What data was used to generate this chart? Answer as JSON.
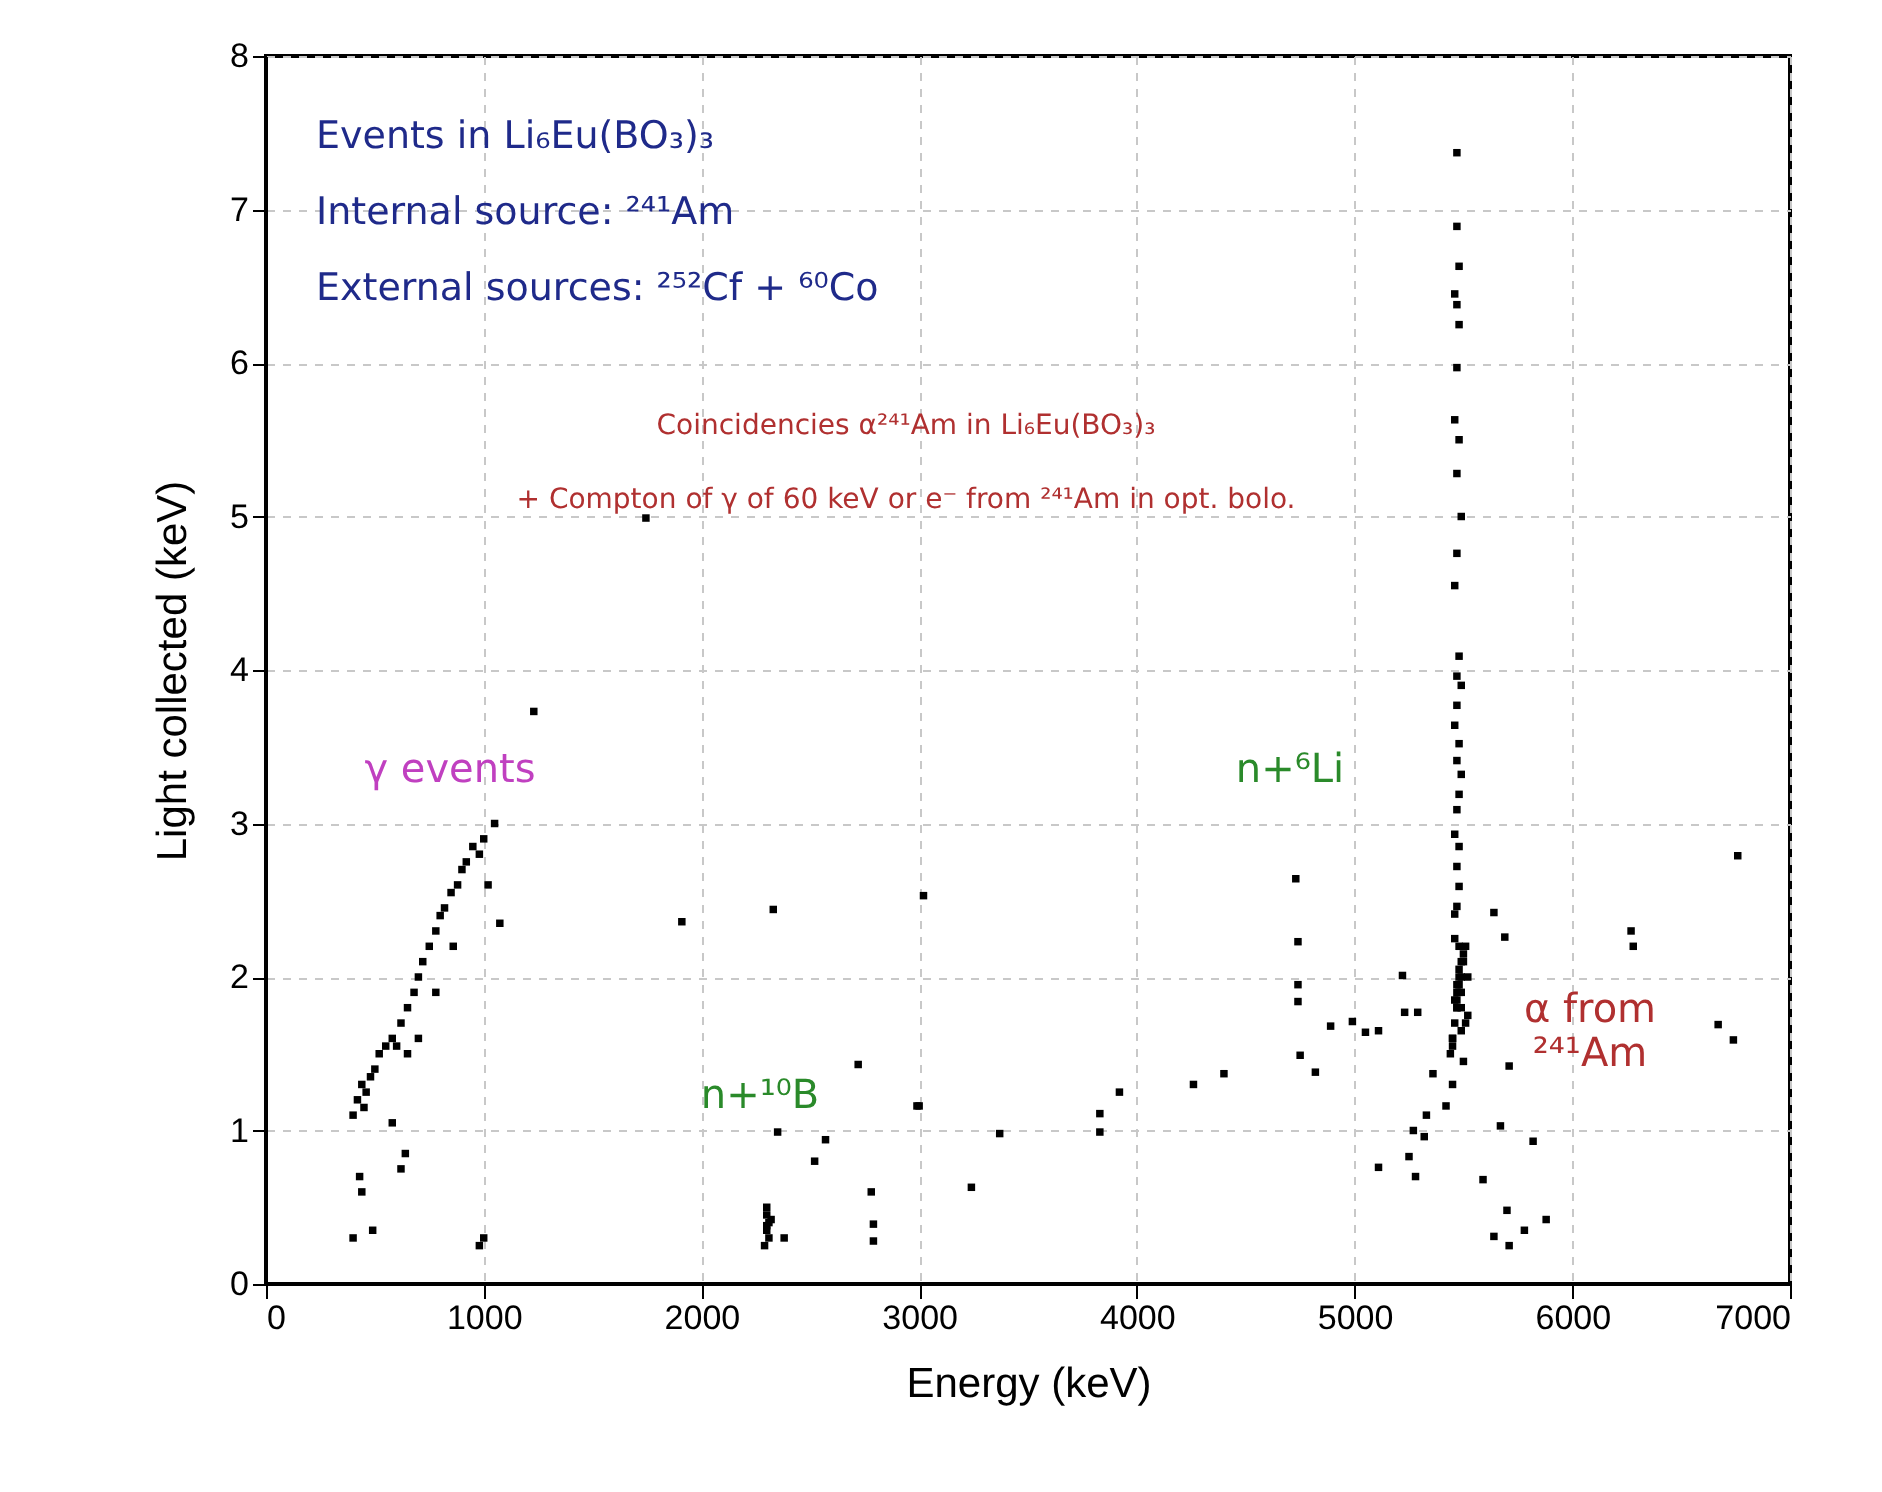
{
  "chart_data": {
    "type": "scatter",
    "xlabel": "Energy (keV)",
    "ylabel": "Light collected (keV)",
    "xlim": [
      0,
      7000
    ],
    "xticks": [
      0,
      1000,
      2000,
      3000,
      4000,
      5000,
      6000,
      7000
    ],
    "ylim": [
      0,
      8
    ],
    "yticks": [
      0,
      1,
      2,
      3,
      4,
      5,
      6,
      7,
      8
    ],
    "grid": true,
    "marker": "square",
    "series": [
      {
        "color": "#000000",
        "x": [
          400,
          420,
          440,
          450,
          460,
          480,
          500,
          520,
          550,
          580,
          600,
          620,
          650,
          680,
          700,
          720,
          750,
          780,
          800,
          820,
          850,
          880,
          900,
          920,
          950,
          980,
          1000,
          1050,
          1020,
          860,
          780,
          700,
          650,
          1074,
          1230,
          430,
          440,
          640,
          620,
          580,
          490,
          400,
          1000,
          980,
          1910,
          2330,
          1745,
          2300,
          2300,
          2310,
          2300,
          2310,
          2290,
          2320,
          2300,
          2380,
          2350,
          2720,
          2570,
          2520,
          2780,
          2790,
          2790,
          2990,
          3020,
          3000,
          3370,
          3240,
          3830,
          3830,
          3920,
          4260,
          4400,
          4730,
          4740,
          4740,
          4740,
          4750,
          4820,
          4890,
          4990,
          5050,
          5110,
          5220,
          5230,
          5290,
          5110,
          5250,
          5280,
          5270,
          5320,
          5670,
          5820,
          5590,
          5700,
          5640,
          5710,
          5780,
          5880,
          5640,
          5690,
          5710,
          6270,
          6280,
          6670,
          6760,
          6740,
          5360,
          5330,
          5420,
          5450,
          5440,
          5450,
          5460,
          5470,
          5480,
          5490,
          5500,
          5510,
          5520,
          5460,
          5470,
          5480,
          5490,
          5500,
          5450,
          5470,
          5490,
          5510,
          5480,
          5460,
          5500,
          5470,
          5490,
          5480,
          5450,
          5520,
          5470,
          5490,
          5480,
          5470,
          5470,
          5480,
          5460,
          5470,
          5480,
          5470,
          5460,
          5480,
          5470,
          5490,
          5470,
          5460,
          5480,
          5470,
          5490,
          5470,
          5460,
          5480,
          5470,
          5490,
          5480,
          5470,
          5460,
          5480,
          5470,
          5480,
          5470,
          5460
        ],
        "values": [
          1.1,
          1.2,
          1.3,
          1.15,
          1.25,
          1.35,
          1.4,
          1.5,
          1.55,
          1.6,
          1.55,
          1.7,
          1.8,
          1.9,
          2.0,
          2.1,
          2.2,
          2.3,
          2.4,
          2.45,
          2.55,
          2.6,
          2.7,
          2.75,
          2.85,
          2.8,
          2.9,
          3.0,
          2.6,
          2.2,
          1.9,
          1.6,
          1.5,
          2.35,
          3.73,
          0.7,
          0.6,
          0.85,
          0.75,
          1.05,
          0.35,
          0.3,
          0.3,
          0.25,
          2.36,
          2.44,
          4.99,
          0.5,
          0.45,
          0.4,
          0.35,
          0.3,
          0.25,
          0.42,
          0.38,
          0.3,
          0.99,
          1.43,
          0.94,
          0.8,
          0.6,
          0.39,
          0.28,
          1.16,
          2.53,
          1.16,
          0.98,
          0.63,
          1.11,
          0.99,
          1.25,
          1.3,
          1.37,
          2.64,
          2.23,
          1.95,
          1.84,
          1.49,
          1.38,
          1.68,
          1.71,
          1.64,
          1.65,
          2.01,
          1.77,
          1.77,
          0.76,
          0.83,
          0.7,
          1.0,
          0.96,
          1.03,
          0.93,
          0.68,
          0.48,
          0.31,
          0.25,
          0.35,
          0.42,
          2.42,
          2.26,
          1.42,
          2.3,
          2.2,
          1.69,
          2.79,
          1.59,
          1.37,
          1.1,
          1.16,
          1.3,
          1.5,
          1.6,
          1.7,
          1.8,
          1.9,
          2.0,
          2.1,
          2.2,
          1.75,
          1.85,
          1.95,
          2.05,
          1.65,
          2.15,
          1.55,
          1.9,
          1.8,
          1.7,
          2.0,
          2.25,
          1.45,
          1.85,
          2.1,
          1.95,
          1.6,
          2.0,
          1.8,
          1.9,
          2.2,
          7.37,
          6.89,
          6.63,
          6.45,
          6.38,
          6.25,
          5.97,
          5.63,
          5.5,
          5.28,
          5.0,
          4.76,
          4.55,
          4.09,
          3.96,
          3.9,
          3.77,
          3.64,
          3.52,
          3.41,
          3.32,
          3.19,
          3.09,
          2.93,
          2.85,
          2.72,
          2.59,
          2.46,
          2.41
        ]
      }
    ],
    "annotations": [
      "Events in Li₆Eu(BO₃)₃",
      "Internal source: ²⁴¹Am",
      "External sources: ²⁵²Cf + ⁶⁰Co",
      "Coincidencies α²⁴¹Am in Li₆Eu(BO₃)₃",
      "+ Compton of γ of 60 keV or e⁻ from ²⁴¹Am in opt. bolo.",
      "γ events",
      "n+¹⁰B",
      "n+⁶Li",
      "α from\n²⁴¹Am"
    ]
  }
}
